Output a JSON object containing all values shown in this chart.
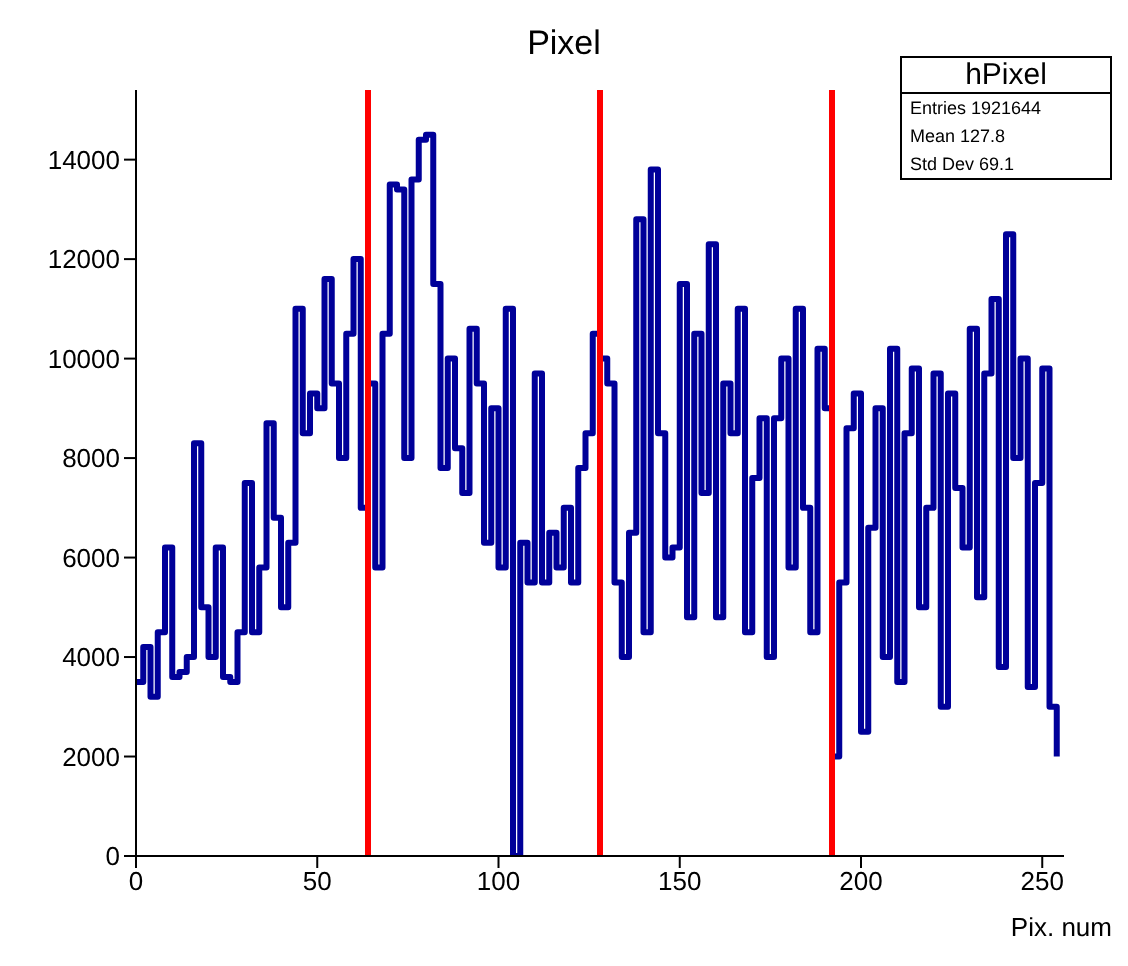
{
  "chart_data": {
    "type": "step",
    "title": "Pixel",
    "xlabel": "Pix. num",
    "x": [
      0,
      2,
      4,
      6,
      8,
      10,
      12,
      14,
      16,
      18,
      20,
      22,
      24,
      26,
      28,
      30,
      32,
      34,
      36,
      38,
      40,
      42,
      44,
      46,
      48,
      50,
      52,
      54,
      56,
      58,
      60,
      62,
      64,
      66,
      68,
      70,
      72,
      74,
      76,
      78,
      80,
      82,
      84,
      86,
      88,
      90,
      92,
      94,
      96,
      98,
      100,
      102,
      104,
      106,
      108,
      110,
      112,
      114,
      116,
      118,
      120,
      122,
      124,
      126,
      128,
      130,
      132,
      134,
      136,
      138,
      140,
      142,
      144,
      146,
      148,
      150,
      152,
      154,
      156,
      158,
      160,
      162,
      164,
      166,
      168,
      170,
      172,
      174,
      176,
      178,
      180,
      182,
      184,
      186,
      188,
      190,
      192,
      194,
      196,
      198,
      200,
      202,
      204,
      206,
      208,
      210,
      212,
      214,
      216,
      218,
      220,
      222,
      224,
      226,
      228,
      230,
      232,
      234,
      236,
      238,
      240,
      242,
      244,
      246,
      248,
      250,
      252,
      254
    ],
    "series": [
      {
        "color": "#000099",
        "values": [
          3500,
          4200,
          3200,
          4500,
          6200,
          3600,
          3700,
          4000,
          8300,
          5000,
          4000,
          6200,
          3600,
          3500,
          4500,
          7500,
          4500,
          5800,
          8700,
          6800,
          5000,
          6300,
          11000,
          8500,
          9300,
          9000,
          11600,
          9500,
          8000,
          10500,
          12000,
          7000,
          9500,
          5800,
          10500,
          13500,
          13400,
          8000,
          13600,
          14400,
          14500,
          11500,
          7800,
          10000,
          8200,
          7300,
          10600,
          9500,
          6300,
          9000,
          5800,
          11000,
          0,
          6300,
          5500,
          9700,
          5500,
          6500,
          5800,
          7000,
          5500,
          7800,
          8500,
          10500,
          10000,
          9500,
          5500,
          4000,
          6500,
          12800,
          4500,
          13800,
          8500,
          6000,
          6200,
          11500,
          4800,
          10500,
          7300,
          12300,
          4800,
          9500,
          8500,
          11000,
          4500,
          7600,
          8800,
          4000,
          8800,
          10000,
          5800,
          11000,
          7000,
          4500,
          10200,
          9000,
          2000,
          5500,
          8600,
          9300,
          2500,
          6600,
          9000,
          4000,
          10200,
          3500,
          8500,
          9800,
          5000,
          7000,
          9700,
          3000,
          9300,
          7400,
          6200,
          10600,
          5200,
          9700,
          11200,
          3800,
          12500,
          8000,
          10000,
          3400,
          7500,
          9800,
          3000,
          2000
        ]
      }
    ],
    "xlim": [
      0,
      256
    ],
    "xticks": [
      0,
      50,
      100,
      150,
      200,
      250
    ],
    "ylim": [
      0,
      15400
    ],
    "yticks": [
      0,
      2000,
      4000,
      6000,
      8000,
      10000,
      12000,
      14000
    ],
    "ref_lines": [
      {
        "axis": "x",
        "value": 64,
        "color": "#ff0000"
      },
      {
        "axis": "x",
        "value": 128,
        "color": "#ff0000"
      },
      {
        "axis": "x",
        "value": 192,
        "color": "#ff0000"
      }
    ],
    "annotations": [
      "hPixel",
      "Entries 1921644",
      "Mean 127.8",
      "Std Dev 69.1"
    ],
    "grid": false
  }
}
